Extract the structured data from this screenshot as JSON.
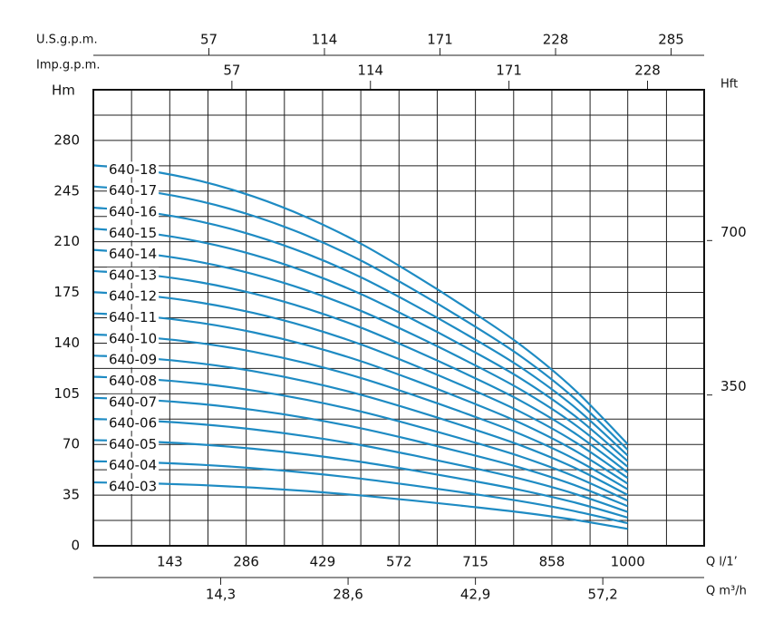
{
  "chart_data": {
    "type": "line",
    "x": [
      0,
      100,
      200,
      300,
      400,
      500,
      600,
      700,
      800,
      900,
      1000
    ],
    "series": [
      {
        "name": "640-03",
        "color": "#1e8bc3",
        "values": [
          43.8,
          43.2,
          42,
          40.2,
          37.8,
          34.8,
          31.2,
          27.3,
          23.1,
          18,
          11.7
        ]
      },
      {
        "name": "640-04",
        "color": "#1e8bc3",
        "values": [
          58.4,
          57.6,
          56,
          53.6,
          50.4,
          46.4,
          41.6,
          36.4,
          30.8,
          24,
          15.6
        ]
      },
      {
        "name": "640-05",
        "color": "#1e8bc3",
        "values": [
          73,
          72,
          70,
          67,
          63,
          58,
          52,
          45.5,
          38.5,
          30,
          19.5
        ]
      },
      {
        "name": "640-06",
        "color": "#1e8bc3",
        "values": [
          87.6,
          86.4,
          84,
          80.4,
          75.6,
          69.6,
          62.4,
          54.6,
          46.2,
          36,
          23.4
        ]
      },
      {
        "name": "640-07",
        "color": "#1e8bc3",
        "values": [
          102.2,
          100.8,
          98,
          93.8,
          88.2,
          81.2,
          72.8,
          63.7,
          53.9,
          42,
          27.3
        ]
      },
      {
        "name": "640-08",
        "color": "#1e8bc3",
        "values": [
          116.8,
          115.2,
          112,
          107.2,
          100.8,
          92.8,
          83.2,
          72.8,
          61.6,
          48,
          31.2
        ]
      },
      {
        "name": "640-09",
        "color": "#1e8bc3",
        "values": [
          131.4,
          129.6,
          126,
          120.6,
          113.4,
          104.4,
          93.6,
          81.9,
          69.3,
          54,
          35.1
        ]
      },
      {
        "name": "640-10",
        "color": "#1e8bc3",
        "values": [
          146,
          144,
          140,
          134,
          126,
          116,
          104,
          91,
          77,
          60,
          39
        ]
      },
      {
        "name": "640-11",
        "color": "#1e8bc3",
        "values": [
          160.6,
          158.4,
          154,
          147.4,
          138.6,
          127.6,
          114.4,
          100.1,
          84.7,
          66,
          42.9
        ]
      },
      {
        "name": "640-12",
        "color": "#1e8bc3",
        "values": [
          175.2,
          172.8,
          168,
          160.8,
          151.2,
          139.2,
          124.8,
          109.2,
          92.4,
          72,
          46.8
        ]
      },
      {
        "name": "640-13",
        "color": "#1e8bc3",
        "values": [
          189.8,
          187.2,
          182,
          174.2,
          163.8,
          150.8,
          135.2,
          118.3,
          100.1,
          78,
          50.7
        ]
      },
      {
        "name": "640-14",
        "color": "#1e8bc3",
        "values": [
          204.4,
          201.6,
          196,
          187.6,
          176.4,
          162.4,
          145.6,
          127.4,
          107.8,
          84,
          54.6
        ]
      },
      {
        "name": "640-15",
        "color": "#1e8bc3",
        "values": [
          219,
          216,
          210,
          201,
          189,
          174,
          156,
          136.5,
          115.5,
          90,
          58.5
        ]
      },
      {
        "name": "640-16",
        "color": "#1e8bc3",
        "values": [
          233.6,
          230.4,
          224,
          214.4,
          201.6,
          185.6,
          166.4,
          145.6,
          123.2,
          96,
          62.4
        ]
      },
      {
        "name": "640-17",
        "color": "#1e8bc3",
        "values": [
          248.2,
          244.8,
          238,
          227.8,
          214.2,
          197.2,
          176.8,
          154.7,
          130.9,
          102,
          66.3
        ]
      },
      {
        "name": "640-18",
        "color": "#1e8bc3",
        "values": [
          262.8,
          259.2,
          252,
          241.2,
          226.8,
          208.8,
          187.2,
          163.8,
          138.6,
          108,
          70.2
        ]
      }
    ],
    "xlim": [
      0,
      1143
    ],
    "xticks": [
      143,
      286,
      429,
      572,
      715,
      858,
      1000
    ],
    "x_minor_grid": [
      71.5,
      214.5,
      357.5,
      500.5,
      643.5,
      786.5,
      929.5,
      1072.5
    ],
    "x_label": "Q l/1’",
    "ylim": [
      0,
      315
    ],
    "yticks": [
      0,
      35,
      70,
      105,
      140,
      175,
      210,
      245,
      280
    ],
    "y_minor_grid": [
      17.5,
      52.5,
      87.5,
      122.5,
      157.5,
      192.5,
      227.5,
      262.5,
      297.5
    ],
    "y_label": "Hm",
    "y2lim": [
      0,
      1033.5
    ],
    "y2ticks": [
      350,
      700
    ],
    "y2_label": "Hft",
    "grid": true,
    "extra_x_axes": [
      {
        "label": "Q m³/h",
        "position": "bottom",
        "lim": [
          0,
          68.58
        ],
        "ticks": [
          {
            "value": 14.3,
            "label": "14,3"
          },
          {
            "value": 28.6,
            "label": "28,6"
          },
          {
            "value": 42.9,
            "label": "42,9"
          },
          {
            "value": 57.2,
            "label": "57,2"
          }
        ]
      },
      {
        "label": "U.S.g.p.m.",
        "position": "top",
        "lim": [
          0,
          301.3
        ],
        "ticks": [
          57,
          114,
          171,
          228,
          285
        ]
      },
      {
        "label": "Imp.g.p.m.",
        "position": "top",
        "lim": [
          0,
          251.3
        ],
        "ticks": [
          57,
          114,
          171,
          228
        ]
      }
    ]
  }
}
